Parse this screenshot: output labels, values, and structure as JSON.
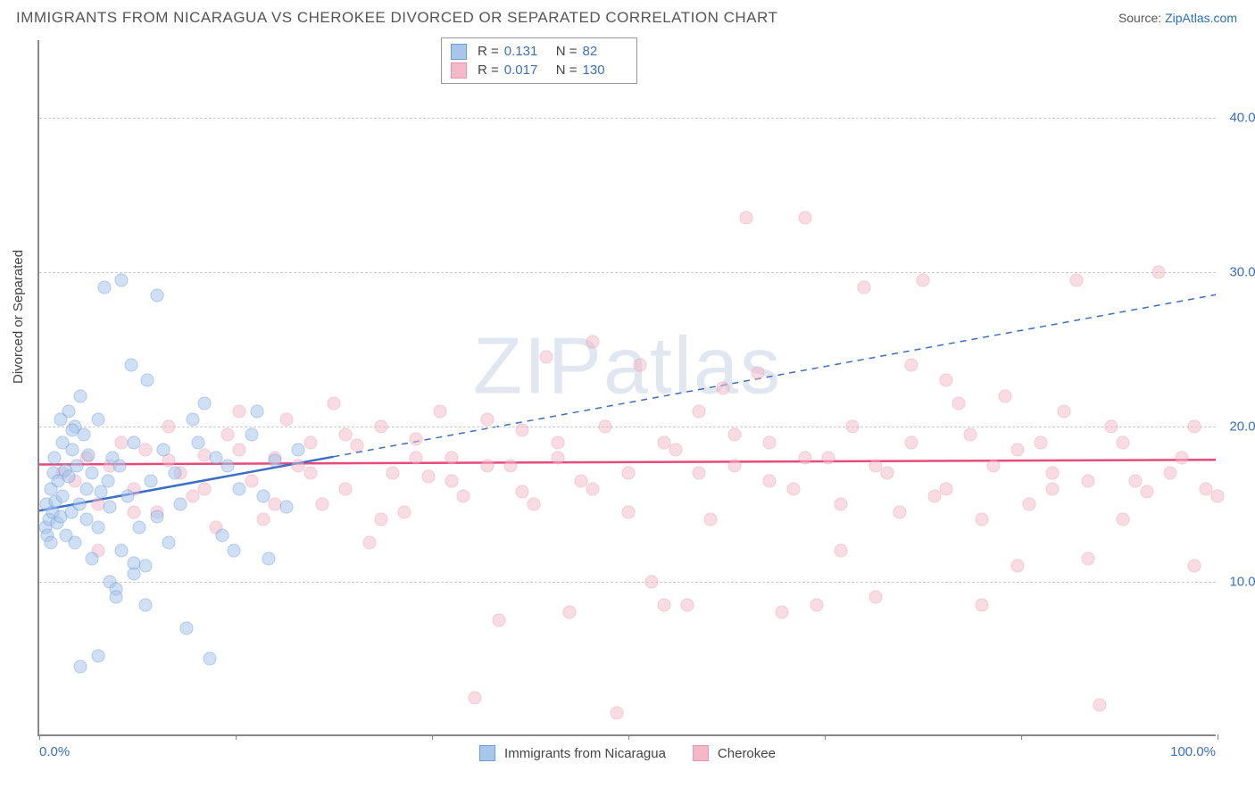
{
  "title": "IMMIGRANTS FROM NICARAGUA VS CHEROKEE DIVORCED OR SEPARATED CORRELATION CHART",
  "source_prefix": "Source: ",
  "source_link": "ZipAtlas.com",
  "ylabel": "Divorced or Separated",
  "watermark": "ZIPatlas",
  "chart": {
    "type": "scatter",
    "xlim": [
      0,
      100
    ],
    "ylim": [
      0,
      45
    ],
    "ytick_values": [
      10,
      20,
      30,
      40
    ],
    "ytick_labels": [
      "10.0%",
      "20.0%",
      "30.0%",
      "40.0%"
    ],
    "xtick_values": [
      0,
      16.7,
      33.3,
      50,
      66.7,
      83.3,
      100
    ],
    "xtick_left": "0.0%",
    "xtick_right": "100.0%",
    "background_color": "#ffffff",
    "grid_color": "#cccccc",
    "series": [
      {
        "name": "Immigrants from Nicaragua",
        "fill": "#a8c5ec",
        "stroke": "#6b9edb",
        "fill_opacity": 0.55,
        "r_label": "R = ",
        "r_value": "0.131",
        "n_label": "N = ",
        "n_value": "82",
        "trend": {
          "x1": 0,
          "y1": 14.5,
          "x2_solid": 25,
          "y2_solid": 18,
          "x2_dash": 100,
          "y2_dash": 28.5,
          "color": "#3a6fc5",
          "width": 2.5
        },
        "points": [
          [
            0.5,
            13.5
          ],
          [
            0.8,
            14
          ],
          [
            0.6,
            15
          ],
          [
            0.7,
            13
          ],
          [
            1,
            12.5
          ],
          [
            1,
            16
          ],
          [
            1.2,
            17
          ],
          [
            1.1,
            14.5
          ],
          [
            1.4,
            15.2
          ],
          [
            1.3,
            18
          ],
          [
            1.5,
            13.8
          ],
          [
            1.6,
            16.5
          ],
          [
            1.8,
            14.2
          ],
          [
            2,
            19
          ],
          [
            2,
            15.5
          ],
          [
            2.2,
            17.2
          ],
          [
            2.3,
            13
          ],
          [
            2.5,
            21
          ],
          [
            2.5,
            16.8
          ],
          [
            2.7,
            14.5
          ],
          [
            2.8,
            18.5
          ],
          [
            3,
            20
          ],
          [
            3,
            12.5
          ],
          [
            3.2,
            17.5
          ],
          [
            3.4,
            15
          ],
          [
            3.5,
            22
          ],
          [
            3.8,
            19.5
          ],
          [
            4,
            16
          ],
          [
            4,
            14
          ],
          [
            4.2,
            18.2
          ],
          [
            4.5,
            11.5
          ],
          [
            4.5,
            17
          ],
          [
            5,
            20.5
          ],
          [
            5,
            13.5
          ],
          [
            5.2,
            15.8
          ],
          [
            5.5,
            29
          ],
          [
            5.8,
            16.5
          ],
          [
            6,
            10
          ],
          [
            6,
            14.8
          ],
          [
            6.2,
            18
          ],
          [
            6.5,
            9.5
          ],
          [
            6.8,
            17.5
          ],
          [
            7,
            12
          ],
          [
            7,
            29.5
          ],
          [
            7.5,
            15.5
          ],
          [
            7.8,
            24
          ],
          [
            8,
            10.5
          ],
          [
            8,
            19
          ],
          [
            8.5,
            13.5
          ],
          [
            9,
            8.5
          ],
          [
            9,
            11
          ],
          [
            9.2,
            23
          ],
          [
            9.5,
            16.5
          ],
          [
            10,
            28.5
          ],
          [
            10,
            14.2
          ],
          [
            10.5,
            18.5
          ],
          [
            11,
            12.5
          ],
          [
            11.5,
            17
          ],
          [
            12,
            15
          ],
          [
            12.5,
            7
          ],
          [
            13,
            20.5
          ],
          [
            13.5,
            19
          ],
          [
            14,
            21.5
          ],
          [
            14.5,
            5
          ],
          [
            15,
            18
          ],
          [
            15.5,
            13
          ],
          [
            16,
            17.5
          ],
          [
            16.5,
            12
          ],
          [
            17,
            16
          ],
          [
            18,
            19.5
          ],
          [
            18.5,
            21
          ],
          [
            19,
            15.5
          ],
          [
            19.5,
            11.5
          ],
          [
            20,
            17.8
          ],
          [
            21,
            14.8
          ],
          [
            22,
            18.5
          ],
          [
            3.5,
            4.5
          ],
          [
            5,
            5.2
          ],
          [
            6.5,
            9
          ],
          [
            8,
            11.2
          ],
          [
            1.8,
            20.5
          ],
          [
            2.8,
            19.8
          ]
        ]
      },
      {
        "name": "Cherokee",
        "fill": "#f4b8c8",
        "stroke": "#e695ad",
        "fill_opacity": 0.5,
        "r_label": "R = ",
        "r_value": "0.017",
        "n_label": "N = ",
        "n_value": "130",
        "trend": {
          "x1": 0,
          "y1": 17.5,
          "x2": 100,
          "y2": 17.8,
          "color": "#e84a7a",
          "width": 2.5
        },
        "points": [
          [
            2,
            17
          ],
          [
            3,
            16.5
          ],
          [
            4,
            18
          ],
          [
            5,
            15
          ],
          [
            6,
            17.5
          ],
          [
            7,
            19
          ],
          [
            8,
            16
          ],
          [
            9,
            18.5
          ],
          [
            10,
            14.5
          ],
          [
            11,
            20
          ],
          [
            12,
            17
          ],
          [
            13,
            15.5
          ],
          [
            14,
            18.2
          ],
          [
            15,
            13.5
          ],
          [
            16,
            19.5
          ],
          [
            17,
            21
          ],
          [
            18,
            16.5
          ],
          [
            19,
            14
          ],
          [
            20,
            18
          ],
          [
            21,
            20.5
          ],
          [
            22,
            17.5
          ],
          [
            23,
            19
          ],
          [
            24,
            15
          ],
          [
            25,
            21.5
          ],
          [
            26,
            16
          ],
          [
            27,
            18.8
          ],
          [
            28,
            12.5
          ],
          [
            29,
            20
          ],
          [
            30,
            17
          ],
          [
            31,
            14.5
          ],
          [
            32,
            19.2
          ],
          [
            33,
            16.8
          ],
          [
            34,
            21
          ],
          [
            35,
            18
          ],
          [
            36,
            15.5
          ],
          [
            37,
            2.5
          ],
          [
            38,
            20.5
          ],
          [
            39,
            7.5
          ],
          [
            40,
            17.5
          ],
          [
            41,
            19.8
          ],
          [
            42,
            15
          ],
          [
            43,
            24.5
          ],
          [
            44,
            18
          ],
          [
            45,
            8
          ],
          [
            46,
            16.5
          ],
          [
            47,
            25.5
          ],
          [
            48,
            20
          ],
          [
            49,
            1.5
          ],
          [
            50,
            17
          ],
          [
            51,
            24
          ],
          [
            52,
            10
          ],
          [
            53,
            19
          ],
          [
            54,
            18.5
          ],
          [
            55,
            8.5
          ],
          [
            56,
            21
          ],
          [
            57,
            14
          ],
          [
            58,
            22.5
          ],
          [
            59,
            17.5
          ],
          [
            60,
            33.5
          ],
          [
            61,
            23.5
          ],
          [
            62,
            19
          ],
          [
            63,
            8
          ],
          [
            64,
            16
          ],
          [
            65,
            33.5
          ],
          [
            66,
            8.5
          ],
          [
            67,
            18
          ],
          [
            68,
            12
          ],
          [
            69,
            20
          ],
          [
            70,
            29
          ],
          [
            71,
            9
          ],
          [
            72,
            17
          ],
          [
            73,
            14.5
          ],
          [
            74,
            24
          ],
          [
            75,
            29.5
          ],
          [
            76,
            15.5
          ],
          [
            77,
            23
          ],
          [
            78,
            21.5
          ],
          [
            79,
            19.5
          ],
          [
            80,
            8.5
          ],
          [
            81,
            17.5
          ],
          [
            82,
            22
          ],
          [
            83,
            11
          ],
          [
            84,
            15
          ],
          [
            85,
            19
          ],
          [
            86,
            16
          ],
          [
            87,
            21
          ],
          [
            88,
            29.5
          ],
          [
            89,
            11.5
          ],
          [
            90,
            2
          ],
          [
            91,
            20
          ],
          [
            92,
            14
          ],
          [
            93,
            16.5
          ],
          [
            94,
            15.8
          ],
          [
            95,
            30
          ],
          [
            96,
            17
          ],
          [
            97,
            18
          ],
          [
            98,
            20
          ],
          [
            99,
            16
          ],
          [
            100,
            15.5
          ],
          [
            98,
            11
          ],
          [
            5,
            12
          ],
          [
            8,
            14.5
          ],
          [
            11,
            17.8
          ],
          [
            14,
            16
          ],
          [
            17,
            18.5
          ],
          [
            20,
            15
          ],
          [
            23,
            17
          ],
          [
            26,
            19.5
          ],
          [
            29,
            14
          ],
          [
            32,
            18
          ],
          [
            35,
            16.5
          ],
          [
            38,
            17.5
          ],
          [
            41,
            15.8
          ],
          [
            44,
            19
          ],
          [
            47,
            16
          ],
          [
            50,
            14.5
          ],
          [
            53,
            8.5
          ],
          [
            56,
            17
          ],
          [
            59,
            19.5
          ],
          [
            62,
            16.5
          ],
          [
            65,
            18
          ],
          [
            68,
            15
          ],
          [
            71,
            17.5
          ],
          [
            74,
            19
          ],
          [
            77,
            16
          ],
          [
            80,
            14
          ],
          [
            83,
            18.5
          ],
          [
            86,
            17
          ],
          [
            89,
            16.5
          ],
          [
            92,
            19
          ]
        ]
      }
    ],
    "legend_bottom": [
      {
        "swatch_fill": "#a8c5ec",
        "swatch_stroke": "#6b9edb",
        "label": "Immigrants from Nicaragua"
      },
      {
        "swatch_fill": "#f4b8c8",
        "swatch_stroke": "#e695ad",
        "label": "Cherokee"
      }
    ]
  }
}
